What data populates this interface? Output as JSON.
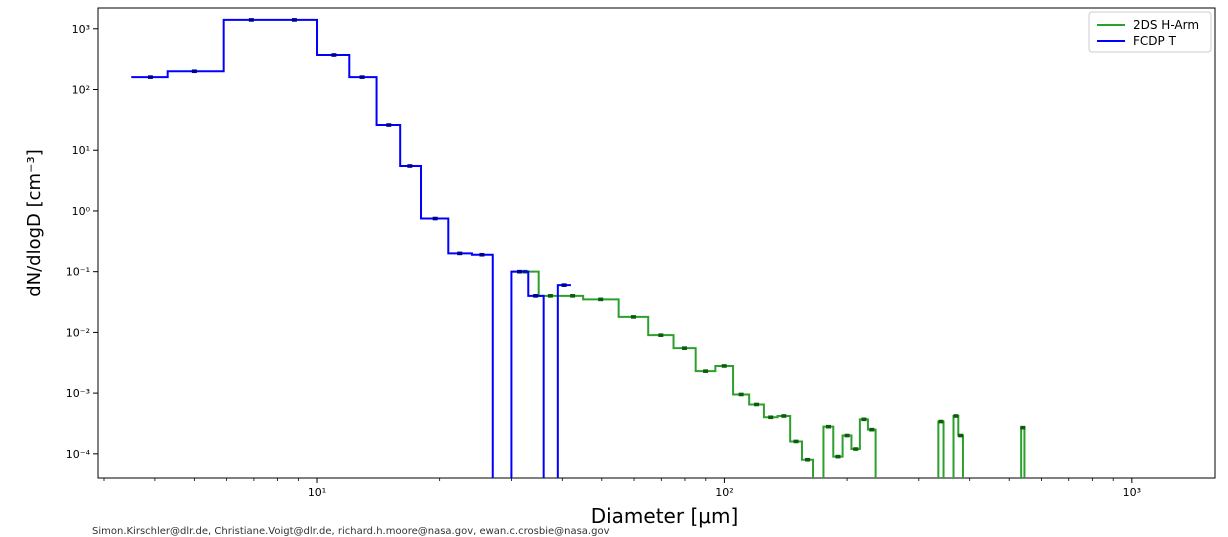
{
  "chart_data": {
    "type": "line",
    "title": "",
    "xlabel": "Diameter [μm]",
    "ylabel": "dN/dlogD [cm⁻³]",
    "xscale": "log",
    "yscale": "log",
    "xlim": [
      2.9,
      1600
    ],
    "ylim": [
      4e-05,
      2200
    ],
    "x_ticks": [
      {
        "value": 10,
        "label": "10¹"
      },
      {
        "value": 100,
        "label": "10²"
      },
      {
        "value": 1000,
        "label": "10³"
      }
    ],
    "y_ticks": [
      {
        "value": 0.0001,
        "label": "10⁻⁴"
      },
      {
        "value": 0.001,
        "label": "10⁻³"
      },
      {
        "value": 0.01,
        "label": "10⁻²"
      },
      {
        "value": 0.1,
        "label": "10⁻¹"
      },
      {
        "value": 1,
        "label": "10⁰"
      },
      {
        "value": 10,
        "label": "10¹"
      },
      {
        "value": 100,
        "label": "10²"
      },
      {
        "value": 1000,
        "label": "10³"
      }
    ],
    "grid": false,
    "legend_position": "top-right",
    "series": [
      {
        "name": "2DS H-Arm",
        "color": "#2ca02c",
        "style": "step",
        "edges": [
          30,
          35,
          40,
          45,
          55,
          65,
          75,
          85,
          95,
          105,
          115,
          125,
          135,
          145,
          155,
          165,
          175,
          185,
          195,
          205,
          215,
          225,
          235,
          245,
          255,
          265,
          275,
          285,
          295,
          305,
          315,
          325,
          335,
          345,
          355,
          365,
          375,
          385,
          395,
          405,
          415,
          425,
          435,
          445,
          455,
          465,
          475,
          485,
          495,
          505,
          515,
          525,
          535,
          545,
          555
        ],
        "values": [
          0.1,
          0.04,
          0.04,
          0.035,
          0.018,
          0.009,
          0.0055,
          0.0023,
          0.0028,
          0.00095,
          0.00065,
          0.0004,
          0.00042,
          0.00016,
          8e-05,
          null,
          0.00028,
          9e-05,
          0.0002,
          0.00012,
          0.00037,
          0.00025,
          null,
          null,
          null,
          null,
          null,
          null,
          null,
          null,
          null,
          null,
          0.00034,
          null,
          null,
          0.00042,
          0.0002,
          null,
          null,
          null,
          null,
          null,
          null,
          null,
          null,
          null,
          null,
          null,
          null,
          null,
          null,
          null,
          0.00027,
          null
        ],
        "markers": [
          {
            "x": 32.4,
            "y": 0.1
          },
          {
            "x": 37.4,
            "y": 0.04
          },
          {
            "x": 42.4,
            "y": 0.04
          },
          {
            "x": 49.7,
            "y": 0.035
          },
          {
            "x": 59.8,
            "y": 0.018
          },
          {
            "x": 69.8,
            "y": 0.009
          },
          {
            "x": 79.8,
            "y": 0.0055
          },
          {
            "x": 89.9,
            "y": 0.0023
          },
          {
            "x": 99.9,
            "y": 0.0028
          },
          {
            "x": 109.9,
            "y": 0.00095
          },
          {
            "x": 119.9,
            "y": 0.00065
          },
          {
            "x": 129.9,
            "y": 0.0004
          },
          {
            "x": 139.9,
            "y": 0.00042
          },
          {
            "x": 149.9,
            "y": 0.00016
          },
          {
            "x": 160,
            "y": 8e-05
          },
          {
            "x": 180,
            "y": 0.00028
          },
          {
            "x": 190,
            "y": 9e-05
          },
          {
            "x": 200,
            "y": 0.0002
          },
          {
            "x": 210,
            "y": 0.00012
          },
          {
            "x": 220,
            "y": 0.00037
          },
          {
            "x": 230,
            "y": 0.00025
          },
          {
            "x": 340,
            "y": 0.00034
          },
          {
            "x": 370,
            "y": 0.00042
          },
          {
            "x": 380,
            "y": 0.0002
          },
          {
            "x": 540,
            "y": 0.00027
          }
        ]
      },
      {
        "name": "FCDP T",
        "color": "#0000ff",
        "style": "step",
        "edges": [
          3.5,
          4.3,
          5.9,
          8.4,
          10.0,
          12.0,
          14.0,
          16.0,
          18.0,
          21.0,
          24.0,
          27.0,
          30.0,
          33.0,
          36.0,
          39.0,
          42.0
        ],
        "values": [
          160,
          200,
          1400,
          1400,
          370,
          160,
          26,
          5.5,
          0.75,
          0.2,
          0.19,
          null,
          0.1,
          0.04,
          null,
          0.06
        ],
        "markers": [
          {
            "x": 3.9,
            "y": 160
          },
          {
            "x": 5.0,
            "y": 200
          },
          {
            "x": 6.9,
            "y": 1400
          },
          {
            "x": 8.8,
            "y": 1400
          },
          {
            "x": 11.0,
            "y": 370
          },
          {
            "x": 12.9,
            "y": 160
          },
          {
            "x": 15.0,
            "y": 26
          },
          {
            "x": 16.9,
            "y": 5.5
          },
          {
            "x": 19.5,
            "y": 0.75
          },
          {
            "x": 22.4,
            "y": 0.2
          },
          {
            "x": 25.4,
            "y": 0.19
          },
          {
            "x": 31.4,
            "y": 0.1
          },
          {
            "x": 34.4,
            "y": 0.04
          },
          {
            "x": 40.4,
            "y": 0.06
          }
        ]
      }
    ]
  },
  "footer": {
    "credit": "Simon.Kirschler@dlr.de, Christiane.Voigt@dlr.de, richard.h.moore@nasa.gov, ewan.c.crosbie@nasa.gov"
  }
}
